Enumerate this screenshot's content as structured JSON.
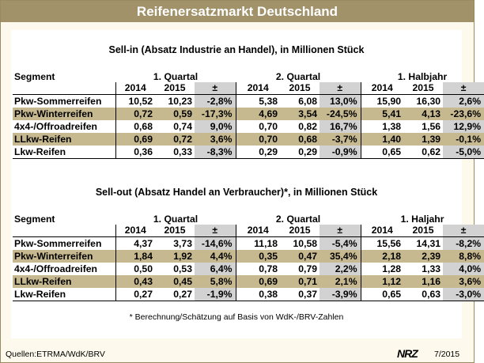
{
  "title": "Reifenersatzmarkt Deutschland",
  "sellin": {
    "title": "Sell-in (Absatz Industrie an Handel), in Millionen Stück",
    "segment_label": "Segment",
    "periods": [
      "1. Quartal",
      "2. Quartal",
      "1. Halbjahr"
    ],
    "years": [
      "2014",
      "2015",
      "±",
      "2014",
      "2015",
      "±",
      "2014",
      "2015",
      "±"
    ],
    "rows": [
      {
        "name": "Pkw-Sommerreifen",
        "v": [
          "10,52",
          "10,23",
          "-2,8%",
          "5,38",
          "6,08",
          "13,0%",
          "15,90",
          "16,30",
          "2,6%"
        ]
      },
      {
        "name": "Pkw-Winterreifen",
        "v": [
          "0,72",
          "0,59",
          "-17,3%",
          "4,69",
          "3,54",
          "-24,5%",
          "5,41",
          "4,13",
          "-23,6%"
        ]
      },
      {
        "name": "4x4-/Offroadreifen",
        "v": [
          "0,68",
          "0,74",
          "9,0%",
          "0,70",
          "0,82",
          "16,7%",
          "1,38",
          "1,56",
          "12,9%"
        ]
      },
      {
        "name": "LLkw-Reifen",
        "v": [
          "0,69",
          "0,72",
          "3,6%",
          "0,70",
          "0,68",
          "-3,7%",
          "1,40",
          "1,39",
          "-0,1%"
        ]
      },
      {
        "name": "Lkw-Reifen",
        "v": [
          "0,36",
          "0,33",
          "-8,3%",
          "0,29",
          "0,29",
          "-0,9%",
          "0,65",
          "0,62",
          "-5,0%"
        ]
      }
    ]
  },
  "sellout": {
    "title": "Sell-out (Absatz Handel an Verbraucher)*, in Millionen Stück",
    "segment_label": "Segment",
    "periods": [
      "1. Quartal",
      "2. Quartal",
      "1. Haljahr"
    ],
    "years": [
      "2014",
      "2015",
      "±",
      "2014",
      "2015",
      "±",
      "2014",
      "2015",
      "±"
    ],
    "rows": [
      {
        "name": "Pkw-Sommerreifen",
        "v": [
          "4,37",
          "3,73",
          "-14,6%",
          "11,18",
          "10,58",
          "-5,4%",
          "15,56",
          "14,31",
          "-8,2%"
        ]
      },
      {
        "name": "Pkw-Winterreifen",
        "v": [
          "1,84",
          "1,92",
          "4,4%",
          "0,35",
          "0,47",
          "35,4%",
          "2,18",
          "2,39",
          "8,8%"
        ]
      },
      {
        "name": "4x4-/Offroadreifen",
        "v": [
          "0,50",
          "0,53",
          "6,4%",
          "0,78",
          "0,79",
          "2,2%",
          "1,28",
          "1,33",
          "4,0%"
        ]
      },
      {
        "name": "LLkw-Reifen",
        "v": [
          "0,43",
          "0,45",
          "5,8%",
          "0,69",
          "0,71",
          "2,1%",
          "1,12",
          "1,16",
          "3,6%"
        ]
      },
      {
        "name": "Lkw-Reifen",
        "v": [
          "0,27",
          "0,27",
          "-1,9%",
          "0,38",
          "0,37",
          "-3,9%",
          "0,65",
          "0,63",
          "-3,0%"
        ]
      }
    ],
    "footnote": "* Berechnung/Schätzung auf Basis von WdK-/BRV-Zahlen"
  },
  "footer": {
    "source": "Quellen:ETRMA/WdK/BRV",
    "logo": "NRZ",
    "date": "7/2015"
  }
}
